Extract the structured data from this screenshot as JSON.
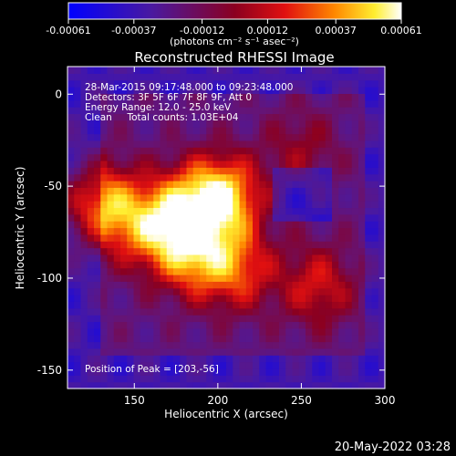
{
  "colorbar": {
    "tick_labels": [
      "-0.00061",
      "-0.00037",
      "-0.00012",
      "0.00012",
      "0.00037",
      "0.00061"
    ],
    "tick_values": [
      -0.00061,
      -0.00037,
      -0.00012,
      0.00012,
      0.00037,
      0.00061
    ],
    "range": [
      -0.00061,
      0.00061
    ],
    "units_label": "(photons cm⁻² s⁻¹ asec⁻²)"
  },
  "chart_data": {
    "type": "heatmap",
    "title": "Reconstructed RHESSI Image",
    "xlabel": "Heliocentric X (arcsec)",
    "ylabel": "Heliocentric Y (arcsec)",
    "xlim": [
      110,
      300
    ],
    "ylim": [
      -160,
      15
    ],
    "x_ticks": [
      150,
      200,
      250,
      300
    ],
    "y_ticks": [
      0,
      -50,
      -100,
      -150
    ],
    "annotations": [
      "28-Mar-2015 09:17:48.000 to 09:23:48.000",
      "Detectors: 3F 5F 6F 7F 8F 9F, Att 0",
      "Energy Range: 12.0 - 25.0 keV",
      "Clean     Total counts: 1.03E+04"
    ],
    "peak_label": "Position of Peak = [203,-56]",
    "peak_position": [
      203,
      -56
    ],
    "colormap": "blue-purple-red-yellow-white",
    "sources": [
      {
        "x": 203,
        "y": -56,
        "intensity": 1.0
      },
      {
        "x": 130,
        "y": -60,
        "intensity": 0.85
      },
      {
        "x": 185,
        "y": -87,
        "intensity": 0.75
      },
      {
        "x": 160,
        "y": -72,
        "intensity": 0.7
      },
      {
        "x": 212,
        "y": -95,
        "intensity": 0.6
      },
      {
        "x": 260,
        "y": -104,
        "intensity": 0.5
      },
      {
        "x": 180,
        "y": -60,
        "intensity": 0.55
      },
      {
        "x": 250,
        "y": -30,
        "intensity": 0.3
      }
    ]
  },
  "timestamp": "20-May-2022 03:28"
}
